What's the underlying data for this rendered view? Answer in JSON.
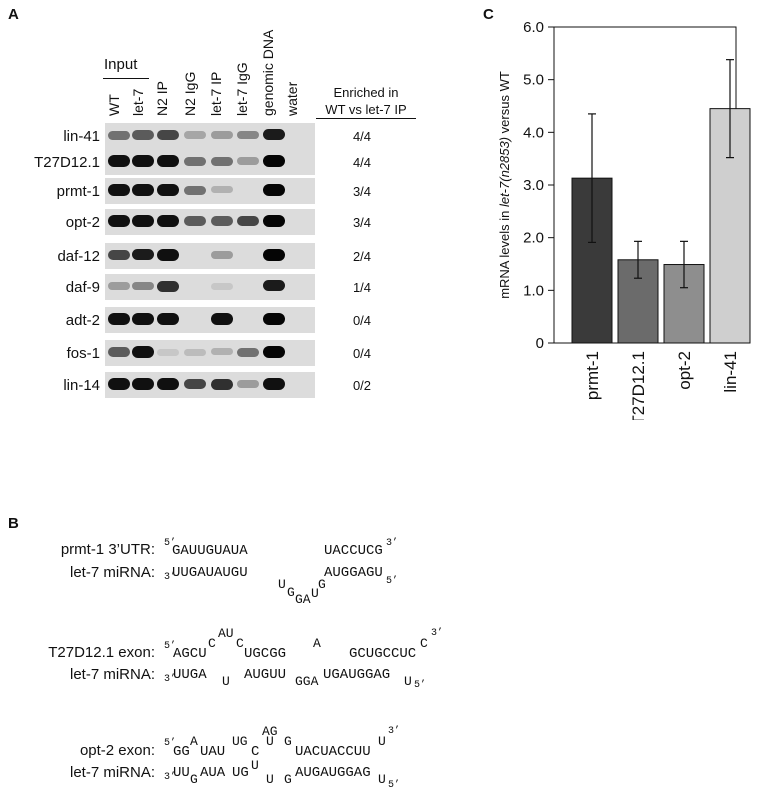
{
  "panel_a": {
    "label": "A",
    "input_label": "Input",
    "columns": [
      "WT",
      "let-7",
      "N2 IP",
      "N2 IgG",
      "let-7 IP",
      "let-7 IgG",
      "genomic DNA",
      "water"
    ],
    "enriched_header": [
      "Enriched in",
      "WT vs let-7 IP"
    ],
    "rows": [
      {
        "gene": "lin-41",
        "ratio": "4/4"
      },
      {
        "gene": "T27D12.1",
        "ratio": "4/4"
      },
      {
        "gene": "prmt-1",
        "ratio": "3/4"
      },
      {
        "gene": "opt-2",
        "ratio": "3/4"
      },
      {
        "gene": "daf-12",
        "ratio": "2/4"
      },
      {
        "gene": "daf-9",
        "ratio": "1/4"
      },
      {
        "gene": "adt-2",
        "ratio": "0/4"
      },
      {
        "gene": "fos-1",
        "ratio": "0/4"
      },
      {
        "gene": "lin-14",
        "ratio": "0/2"
      }
    ]
  },
  "panel_b": {
    "label": "B",
    "prmt": {
      "utr_label": "prmt-1 3’UTR:",
      "mirna_label": "let-7 miRNA:"
    },
    "t27": {
      "utr_label": "T27D12.1 exon:",
      "mirna_label": "let-7 miRNA:"
    },
    "opt": {
      "utr_label": "opt-2 exon:",
      "mirna_label": "let-7 miRNA:"
    },
    "seq": {
      "five": "5’",
      "three": "3’",
      "p_top_a": "GAUUGUAUA",
      "p_top_b": "UACCUCG",
      "p_bot_a": "UUGAUAUGU",
      "p_bot_b": "AUGGAGU",
      "p_loop_1": "U",
      "p_loop_2": "G",
      "p_loop_3": "GA",
      "p_loop_4": "U",
      "t_top_a": "AGCU",
      "t_top_c": "C",
      "t_top_au": "AU",
      "t_top_c2": "C",
      "t_top_b": "UGCGG",
      "t_top_a2": "A",
      "t_top_d": "GCUGCCUC",
      "t_top_e": "C",
      "t_bot_a": "UUGA",
      "t_bot_u": "U",
      "t_bot_b": "AUGUU",
      "t_bot_gga": "GGA",
      "t_bot_c": "UGAUGGAG",
      "t_bot_u2": "U",
      "o_top_gg": "GG",
      "o_top_a": "A",
      "o_top_uau": "UAU",
      "o_top_ug": "UG",
      "o_top_c": "C",
      "o_top_ag": "AG",
      "o_top_u": "U",
      "o_top_g": "G",
      "o_top_rest": "UACUACCUU",
      "o_top_u2": "U",
      "o_bot_uu": "UU",
      "o_bot_g": "G",
      "o_bot_aua": "AUA",
      "o_bot_ug": "UG",
      "o_bot_u": "U",
      "o_bot_u3": "U",
      "o_bot_g2": "G",
      "o_bot_rest": "AUGAUGGAG",
      "o_bot_u2": "U"
    }
  },
  "panel_c": {
    "label": "C"
  },
  "chart_data": {
    "type": "bar",
    "categories": [
      "prmt-1",
      "T27D12.1",
      "opt-2",
      "lin-41"
    ],
    "values": [
      3.13,
      1.58,
      1.49,
      4.45
    ],
    "errors": [
      1.22,
      0.35,
      0.44,
      0.93
    ],
    "colors": [
      "#3a3a3a",
      "#6b6b6b",
      "#8e8e8e",
      "#cfcfcf"
    ],
    "ylabel_pre": "mRNA levels in ",
    "ylabel_italic": "let-7(n2853)",
    "ylabel_post": " versus WT",
    "yticks": [
      "0",
      "1.0",
      "2.0",
      "3.0",
      "4.0",
      "5.0",
      "6.0"
    ],
    "ylim": [
      0,
      6
    ]
  }
}
